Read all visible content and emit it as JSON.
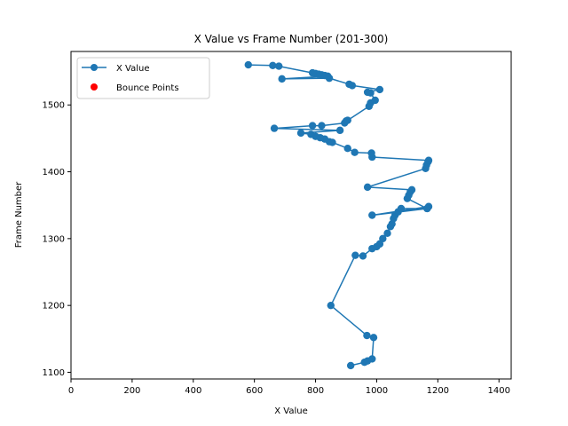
{
  "chart_data": {
    "type": "scatter",
    "title": "X Value vs Frame Number (201-300)",
    "xlabel": "X Value",
    "ylabel": "Frame Number",
    "xlim": [
      0,
      1440
    ],
    "ylim": [
      1090,
      1580
    ],
    "xticks": [
      0,
      200,
      400,
      600,
      800,
      1000,
      1200,
      1400
    ],
    "yticks": [
      1100,
      1200,
      1300,
      1400,
      1500
    ],
    "grid": false,
    "legend": {
      "placement": "top-left",
      "entries": [
        "X Value",
        "Bounce Points"
      ]
    },
    "colors": {
      "line": "#1f77b4",
      "bounce": "#ff0000",
      "axes": "#000000"
    },
    "series": [
      {
        "name": "X Value",
        "style": "line-marker",
        "points": [
          [
            915,
            1110
          ],
          [
            960,
            1115
          ],
          [
            970,
            1117
          ],
          [
            985,
            1120
          ],
          [
            990,
            1152
          ],
          [
            968,
            1155
          ],
          [
            850,
            1200
          ],
          [
            930,
            1275
          ],
          [
            955,
            1274
          ],
          [
            985,
            1285
          ],
          [
            1000,
            1288
          ],
          [
            1010,
            1292
          ],
          [
            1020,
            1300
          ],
          [
            1035,
            1308
          ],
          [
            1045,
            1318
          ],
          [
            1050,
            1322
          ],
          [
            1055,
            1330
          ],
          [
            1060,
            1335
          ],
          [
            1070,
            1340
          ],
          [
            1080,
            1345
          ],
          [
            1165,
            1345
          ],
          [
            1170,
            1348
          ],
          [
            985,
            1335
          ],
          [
            1165,
            1345
          ],
          [
            1100,
            1360
          ],
          [
            1105,
            1365
          ],
          [
            1110,
            1370
          ],
          [
            1115,
            1373
          ],
          [
            970,
            1377
          ],
          [
            1160,
            1405
          ],
          [
            1163,
            1410
          ],
          [
            1168,
            1415
          ],
          [
            1170,
            1417
          ],
          [
            985,
            1422
          ],
          [
            983,
            1428
          ],
          [
            928,
            1429
          ],
          [
            905,
            1435
          ],
          [
            855,
            1444
          ],
          [
            845,
            1445
          ],
          [
            830,
            1449
          ],
          [
            815,
            1451
          ],
          [
            800,
            1453
          ],
          [
            785,
            1456
          ],
          [
            752,
            1458
          ],
          [
            880,
            1462
          ],
          [
            665,
            1465
          ],
          [
            790,
            1469
          ],
          [
            820,
            1469
          ],
          [
            895,
            1473
          ],
          [
            900,
            1476
          ],
          [
            905,
            1477
          ],
          [
            975,
            1498
          ],
          [
            980,
            1503
          ],
          [
            995,
            1507
          ],
          [
            980,
            1518
          ],
          [
            970,
            1519
          ],
          [
            1010,
            1523
          ],
          [
            920,
            1529
          ],
          [
            910,
            1531
          ],
          [
            845,
            1540
          ],
          [
            690,
            1539
          ],
          [
            840,
            1543
          ],
          [
            830,
            1544
          ],
          [
            820,
            1545
          ],
          [
            810,
            1546
          ],
          [
            800,
            1547
          ],
          [
            790,
            1548
          ],
          [
            680,
            1558
          ],
          [
            660,
            1559
          ],
          [
            580,
            1560
          ]
        ]
      }
    ],
    "bounce_points": []
  }
}
